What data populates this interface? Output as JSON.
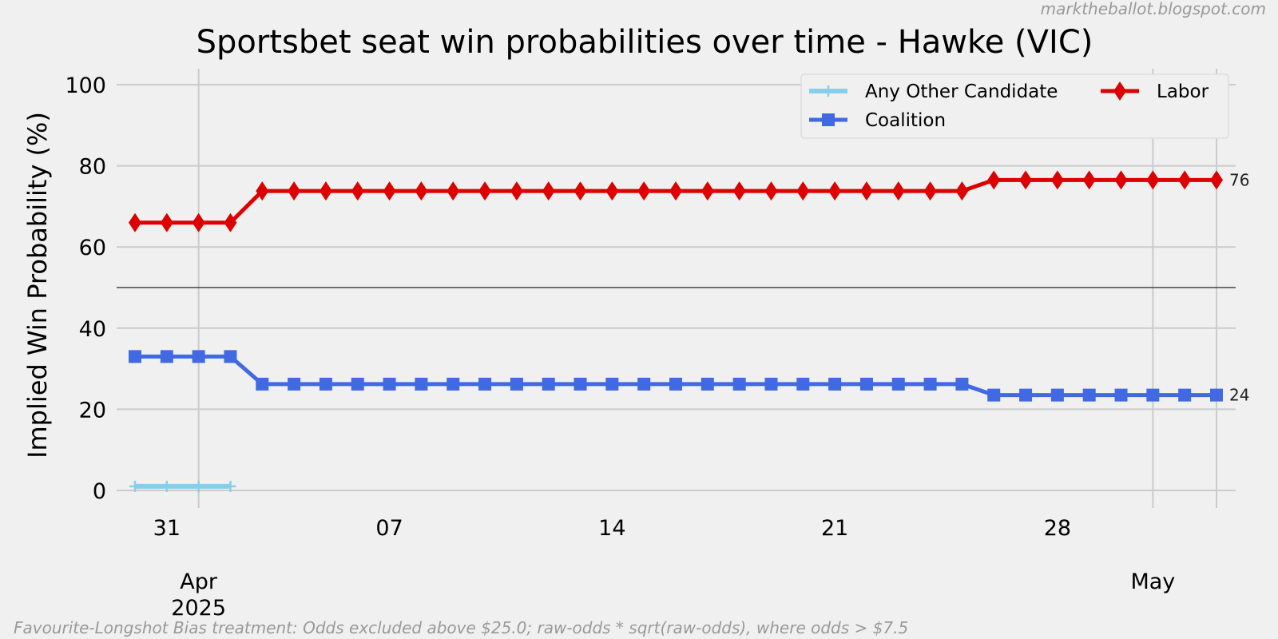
{
  "watermark": "marktheballot.blogspot.com",
  "footnote": "Favourite-Longshot Bias treatment: Odds excluded above $25.0; raw-odds * sqrt(raw-odds), where odds > $7.5",
  "colors": {
    "background": "#f0f0f0",
    "grid": "#cbcbcb",
    "labor": "#dd0000",
    "coalition": "#4169e1",
    "other": "#87ceeb",
    "text": "#000000",
    "muted": "#999999"
  },
  "chart_data": {
    "type": "line",
    "title": "Sportsbet seat win probabilities over time - Hawke (VIC)",
    "xlabel": "",
    "ylabel": "Implied Win Probability (%)",
    "ylim": [
      0,
      100
    ],
    "yticks": [
      0,
      20,
      40,
      60,
      80,
      100
    ],
    "reference_line_y": 50,
    "grid": true,
    "legend_position": "top-right",
    "x_start": "2025-03-30",
    "x_end": "2025-05-03",
    "x_tick_labels": [
      {
        "date": "2025-03-31",
        "label": "31"
      },
      {
        "date": "2025-04-07",
        "label": "07"
      },
      {
        "date": "2025-04-14",
        "label": "14"
      },
      {
        "date": "2025-04-21",
        "label": "21"
      },
      {
        "date": "2025-04-28",
        "label": "28"
      }
    ],
    "x_major_labels": [
      {
        "date": "2025-04-01",
        "lines": [
          "Apr",
          "2025"
        ]
      },
      {
        "date": "2025-05-01",
        "lines": [
          "May"
        ]
      }
    ],
    "x_vertical_gridlines": [
      "2025-04-01",
      "2025-05-01",
      "2025-05-03"
    ],
    "series": [
      {
        "name": "Any Other Candidate",
        "color_key": "other",
        "marker": "plus",
        "x": [
          "2025-03-30",
          "2025-03-31",
          "2025-04-01",
          "2025-04-02"
        ],
        "values": [
          1,
          1,
          1,
          1
        ]
      },
      {
        "name": "Coalition",
        "color_key": "coalition",
        "marker": "square",
        "x": [
          "2025-03-30",
          "2025-03-31",
          "2025-04-01",
          "2025-04-02",
          "2025-04-03",
          "2025-04-04",
          "2025-04-05",
          "2025-04-06",
          "2025-04-07",
          "2025-04-08",
          "2025-04-09",
          "2025-04-10",
          "2025-04-11",
          "2025-04-12",
          "2025-04-13",
          "2025-04-14",
          "2025-04-15",
          "2025-04-16",
          "2025-04-17",
          "2025-04-18",
          "2025-04-19",
          "2025-04-20",
          "2025-04-21",
          "2025-04-22",
          "2025-04-23",
          "2025-04-24",
          "2025-04-25",
          "2025-04-26",
          "2025-04-27",
          "2025-04-28",
          "2025-04-29",
          "2025-04-30",
          "2025-05-01",
          "2025-05-02",
          "2025-05-03"
        ],
        "values": [
          33,
          33,
          33,
          33,
          26.2,
          26.2,
          26.2,
          26.2,
          26.2,
          26.2,
          26.2,
          26.2,
          26.2,
          26.2,
          26.2,
          26.2,
          26.2,
          26.2,
          26.2,
          26.2,
          26.2,
          26.2,
          26.2,
          26.2,
          26.2,
          26.2,
          26.2,
          23.5,
          23.5,
          23.5,
          23.5,
          23.5,
          23.5,
          23.5,
          23.5
        ],
        "end_label": "24"
      },
      {
        "name": "Labor",
        "color_key": "labor",
        "marker": "diamond",
        "x": [
          "2025-03-30",
          "2025-03-31",
          "2025-04-01",
          "2025-04-02",
          "2025-04-03",
          "2025-04-04",
          "2025-04-05",
          "2025-04-06",
          "2025-04-07",
          "2025-04-08",
          "2025-04-09",
          "2025-04-10",
          "2025-04-11",
          "2025-04-12",
          "2025-04-13",
          "2025-04-14",
          "2025-04-15",
          "2025-04-16",
          "2025-04-17",
          "2025-04-18",
          "2025-04-19",
          "2025-04-20",
          "2025-04-21",
          "2025-04-22",
          "2025-04-23",
          "2025-04-24",
          "2025-04-25",
          "2025-04-26",
          "2025-04-27",
          "2025-04-28",
          "2025-04-29",
          "2025-04-30",
          "2025-05-01",
          "2025-05-02",
          "2025-05-03"
        ],
        "values": [
          66,
          66,
          66,
          66,
          73.8,
          73.8,
          73.8,
          73.8,
          73.8,
          73.8,
          73.8,
          73.8,
          73.8,
          73.8,
          73.8,
          73.8,
          73.8,
          73.8,
          73.8,
          73.8,
          73.8,
          73.8,
          73.8,
          73.8,
          73.8,
          73.8,
          73.8,
          76.5,
          76.5,
          76.5,
          76.5,
          76.5,
          76.5,
          76.5,
          76.5
        ],
        "end_label": "76"
      }
    ],
    "legend": [
      {
        "series": "Any Other Candidate",
        "column": 0,
        "row": 0
      },
      {
        "series": "Coalition",
        "column": 0,
        "row": 1
      },
      {
        "series": "Labor",
        "column": 1,
        "row": 0
      }
    ]
  }
}
